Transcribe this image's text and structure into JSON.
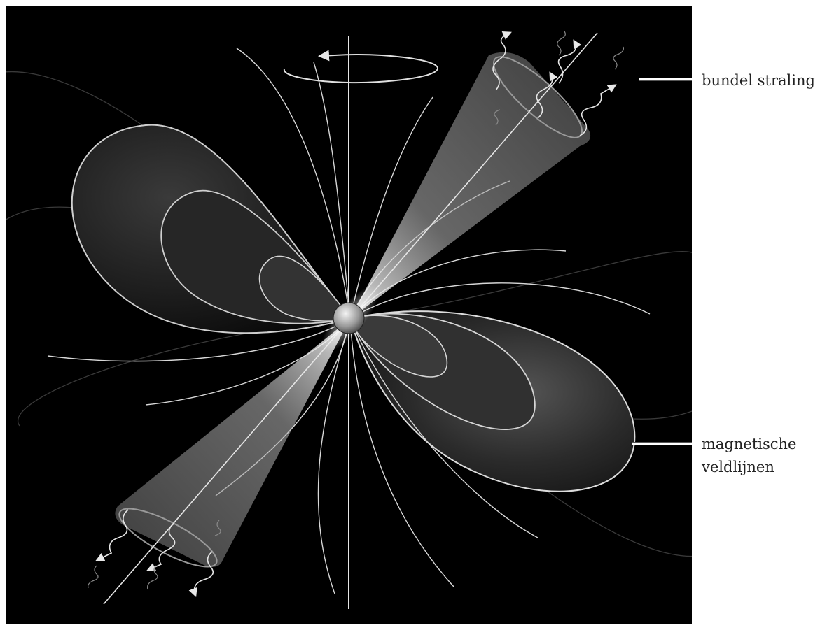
{
  "labels": {
    "beam_radiation": "bundel straling",
    "field_lines_line1": "magnetische",
    "field_lines_line2": "veldlijnen"
  },
  "colors": {
    "background": "#000000",
    "field_line": "#dcdcdc",
    "label_text": "#222222",
    "page": "#ffffff"
  },
  "icons": {
    "rotation": "rotation-arrow-icon",
    "neutron_star": "sphere-icon",
    "radiation": "wavy-arrow-icon"
  }
}
